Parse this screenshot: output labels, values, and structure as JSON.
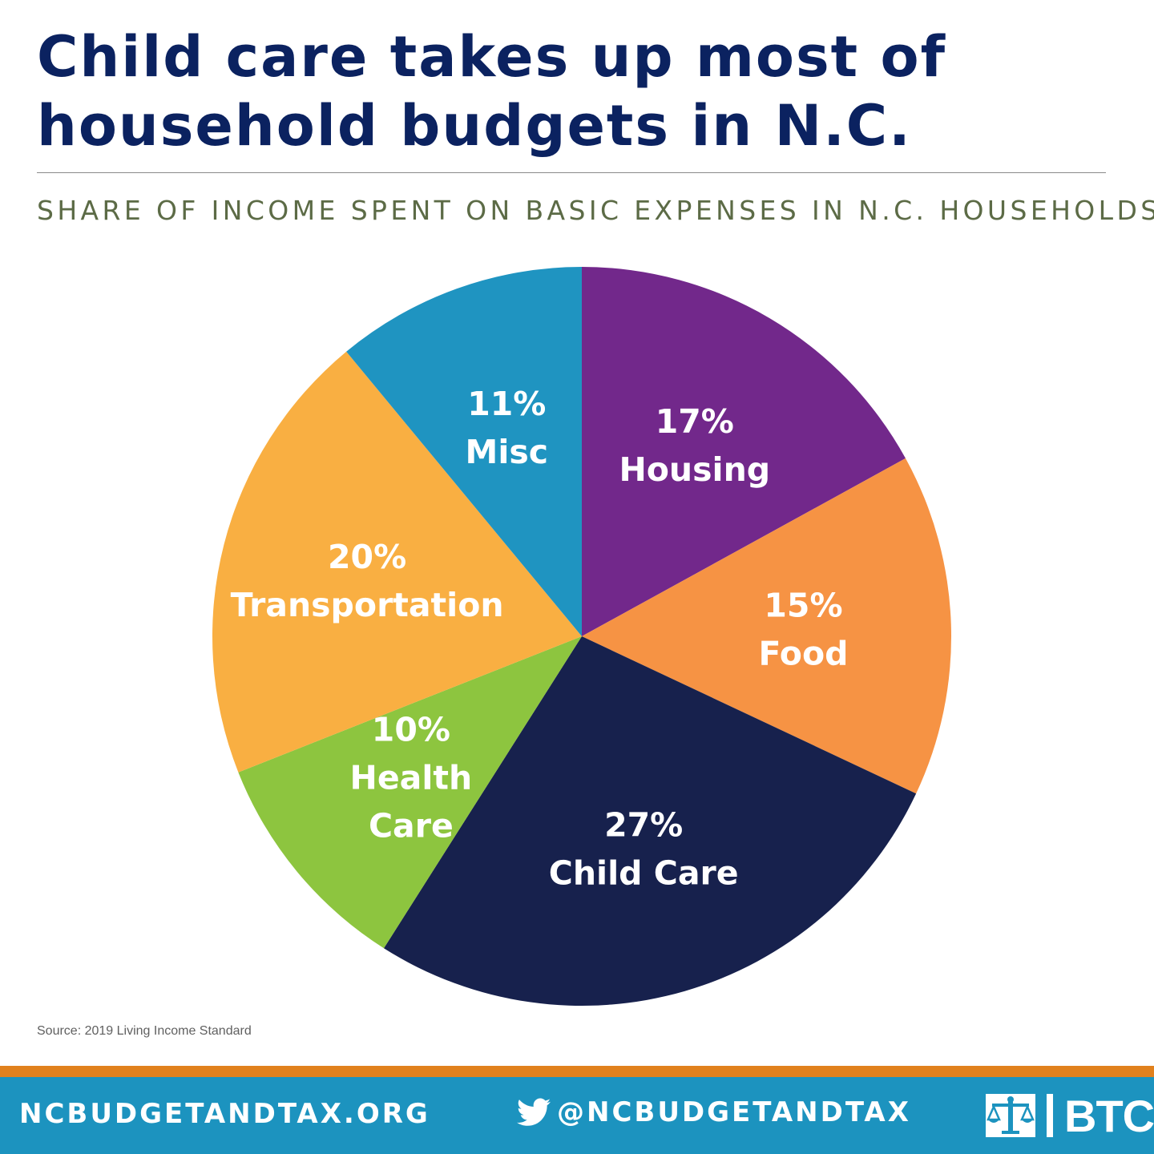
{
  "header": {
    "title_line1": "Child care takes up most of",
    "title_line2": "household budgets in N.C.",
    "subtitle": "SHARE OF INCOME SPENT ON BASIC EXPENSES IN N.C. HOUSEHOLDS"
  },
  "chart_data": {
    "type": "pie",
    "start": "12 o'clock, clockwise",
    "slices": [
      {
        "label": "Housing",
        "value": 17,
        "value_label": "17%",
        "color": "#72288b",
        "label_lines": [
          "17%",
          "Housing"
        ]
      },
      {
        "label": "Food",
        "value": 15,
        "value_label": "15%",
        "color": "#f69344",
        "label_lines": [
          "15%",
          "Food"
        ]
      },
      {
        "label": "Child Care",
        "value": 27,
        "value_label": "27%",
        "color": "#17214d",
        "label_lines": [
          "27%",
          "Child Care"
        ]
      },
      {
        "label": "Health Care",
        "value": 10,
        "value_label": "10%",
        "color": "#8dc53f",
        "label_lines": [
          "10%",
          "Health",
          "Care"
        ]
      },
      {
        "label": "Transportation",
        "value": 20,
        "value_label": "20%",
        "color": "#f9af42",
        "label_lines": [
          "20%",
          "Transportation"
        ]
      },
      {
        "label": "Misc",
        "value": 11,
        "value_label": "11%",
        "color": "#1f94c1",
        "label_lines": [
          "11%",
          "Misc"
        ]
      }
    ]
  },
  "source": "Source: 2019 Living Income Standard",
  "footer": {
    "website": "NCBUDGETANDTAX.ORG",
    "twitter_handle": "@NCBUDGETANDTAX",
    "twitter_icon": "twitter-bird-icon",
    "logo_text": "BTC",
    "logo_icon": "justice-scales-icon",
    "stripe_color": "#e1811d",
    "bar_color": "#1c93bf"
  }
}
